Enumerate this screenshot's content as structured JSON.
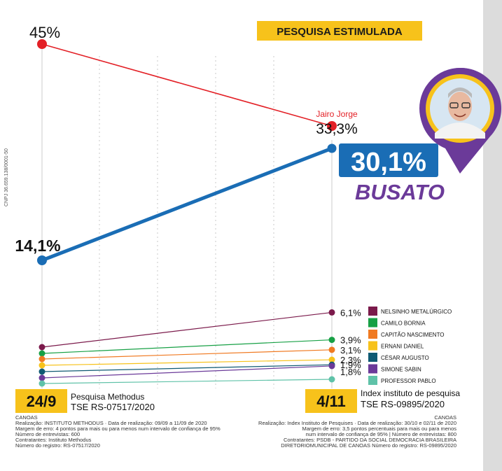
{
  "badge": {
    "label": "PESQUISA ESTIMULADA"
  },
  "side_text": "CNPJ 36.659.138/0001-50",
  "candidate": {
    "name": "BUSATO",
    "value_label": "30,1%",
    "avatar_alt": "Busato"
  },
  "chart_data": {
    "type": "line",
    "title": "PESQUISA ESTIMULADA",
    "x": [
      "24/9",
      "4/11"
    ],
    "series": [
      {
        "name": "Jairo Jorge",
        "values": [
          45,
          33.3
        ],
        "labels": [
          "45%",
          "33,3%"
        ],
        "color": "#e32026"
      },
      {
        "name": "BUSATO",
        "values": [
          14.1,
          30.1
        ],
        "labels": [
          "14,1%",
          "30,1%"
        ],
        "color": "#1a6db5"
      },
      {
        "name": "NELSINHO METALÚRGICO",
        "values": [
          null,
          6.1
        ],
        "labels": [
          "",
          "6,1%"
        ],
        "color": "#7b1a4b"
      },
      {
        "name": "CAMILO BORNIA",
        "values": [
          null,
          3.9
        ],
        "labels": [
          "",
          "3,9%"
        ],
        "color": "#17a045"
      },
      {
        "name": "CAPITÃO NASCIMENTO",
        "values": [
          null,
          3.1
        ],
        "labels": [
          "",
          "3,1%"
        ],
        "color": "#f07a22"
      },
      {
        "name": "ERNANI DANIEL",
        "values": [
          null,
          2.3
        ],
        "labels": [
          "",
          "2,3%"
        ],
        "color": "#f7c21b"
      },
      {
        "name": "CÉSAR AUGUSTO",
        "values": [
          null,
          1.9
        ],
        "labels": [
          "",
          "1,9%"
        ],
        "color": "#0f5a73"
      },
      {
        "name": "SIMONE SABIN",
        "values": [
          null,
          1.8
        ],
        "labels": [
          "",
          "1,8%"
        ],
        "color": "#6b3a99"
      },
      {
        "name": "PROFESSOR PABLO",
        "values": [
          null,
          null
        ],
        "labels": [
          "",
          ""
        ],
        "color": "#5fc2a8"
      }
    ],
    "legend_position": "right",
    "grid": true
  },
  "polls": [
    {
      "date": "24/9",
      "name": "Pesquisa Methodus",
      "registration": "TSE RS-07517/2020",
      "footnote": [
        "CANOAS",
        "Realização: INSTITUTO METHODUS  ·  Data de realização: 09/09 a 11/09 de 2020",
        "Margem de erro: 4 pontos para mais ou para menos num intervalo de confiança de 95%",
        "Número de entrevistas: 600",
        "Contratantes:  Instituto Methodus",
        "Número do registro: RS-07517/2020"
      ]
    },
    {
      "date": "4/11",
      "name": "Index instituto de pesquisa",
      "registration": "TSE RS-09895/2020",
      "footnote": [
        "CANOAS",
        "Realização: Index Instituto de Pesquises  ·  Data de realização: 30/10 e 02/11 de 2020",
        "Margem de erro: 3,5 pontos percentuais para mais ou para menos",
        "num intervalo de confiança de 95% | Número de entrevistas: 800",
        "Contratantes:  PSDB - PARTIDO DA SOCIAL DEMOCRACIA BRASILEIRA",
        "DIRETORIOMUNICIPAL DE CANOAS  Número do registro: RS-09895/2020"
      ]
    }
  ]
}
